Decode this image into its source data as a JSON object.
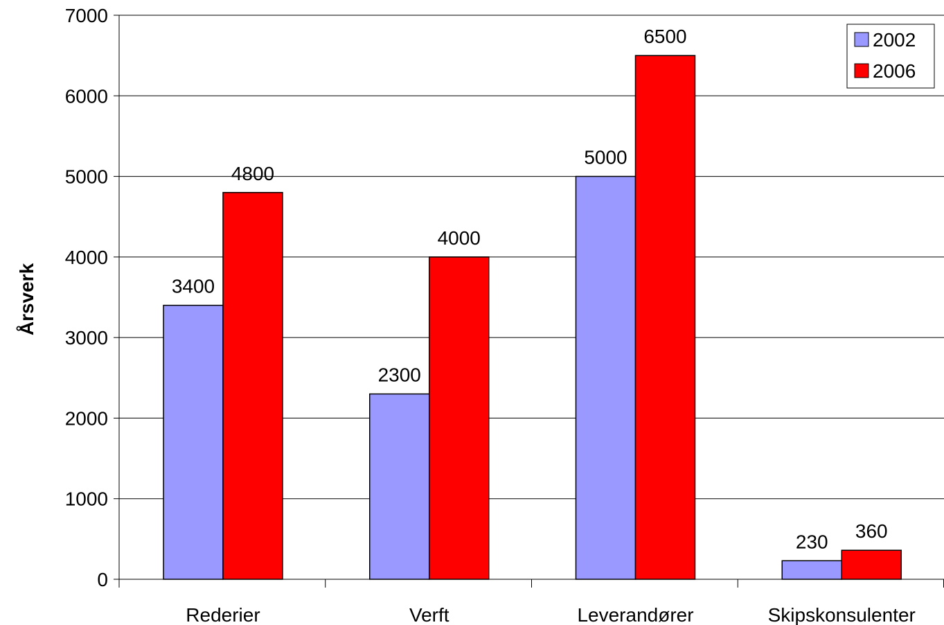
{
  "chart_data": {
    "type": "bar",
    "title": "",
    "xlabel": "",
    "ylabel": "Årsverk",
    "ylim": [
      0,
      7000
    ],
    "yticks": [
      0,
      1000,
      2000,
      3000,
      4000,
      5000,
      6000,
      7000
    ],
    "grid": "horizontal",
    "legend_position": "top-right",
    "categories": [
      "Rederier",
      "Verft",
      "Leverandører",
      "Skipskonsulenter"
    ],
    "series": [
      {
        "name": "2002",
        "color": "#9999ff",
        "values": [
          3400,
          2300,
          5000,
          230
        ]
      },
      {
        "name": "2006",
        "color": "#ff0000",
        "values": [
          4800,
          4000,
          6500,
          360
        ]
      }
    ]
  }
}
